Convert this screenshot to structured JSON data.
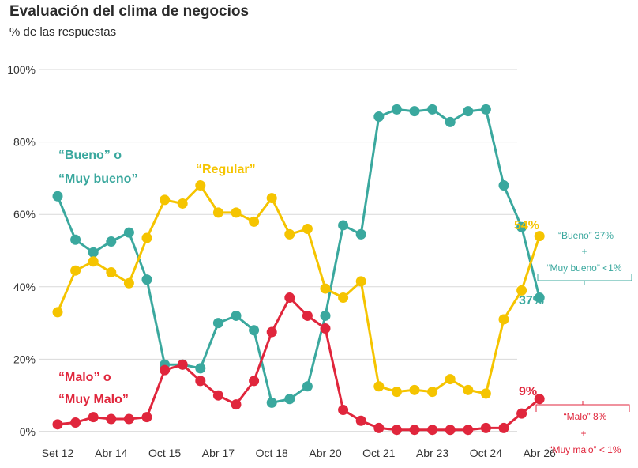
{
  "chart_data": {
    "type": "line",
    "title": "Evaluación del clima de negocios",
    "subtitle": "% de las respuestas",
    "xlabel": "",
    "ylabel": "",
    "ylim": [
      0,
      100
    ],
    "yticks": [
      "0%",
      "20%",
      "40%",
      "60%",
      "80%",
      "100%"
    ],
    "xticks": [
      "Set 12",
      "Abr 14",
      "Oct 15",
      "Abr 17",
      "Oct 18",
      "Abr 20",
      "Oct 21",
      "Abr 23",
      "Oct 24",
      "Abr 26"
    ],
    "grid": true,
    "colors": {
      "bueno": "#3aa89e",
      "regular": "#f5c400",
      "malo": "#e0263c"
    },
    "series": [
      {
        "name": "“Bueno” o “Muy bueno”",
        "key": "bueno",
        "values": [
          65,
          53,
          49.5,
          52.5,
          55,
          42,
          18.5,
          18.5,
          17.5,
          30,
          32,
          28,
          8,
          9,
          12.5,
          32,
          57,
          54.5,
          87,
          89,
          88.5,
          89,
          85.5,
          88.5,
          89,
          68,
          56.5,
          37
        ]
      },
      {
        "name": "“Regular”",
        "key": "regular",
        "values": [
          33,
          44.5,
          47,
          44,
          41,
          53.5,
          64,
          63,
          68,
          60.5,
          60.5,
          58,
          64.5,
          54.5,
          56,
          39.5,
          37,
          41.5,
          12.5,
          11,
          11.5,
          11,
          14.5,
          11.5,
          10.5,
          31,
          39,
          54
        ]
      },
      {
        "name": "“Malo” o “Muy Malo”",
        "key": "malo",
        "values": [
          2,
          2.5,
          4,
          3.5,
          3.5,
          4,
          17,
          18.5,
          14,
          10,
          7.5,
          14,
          27.5,
          37,
          32,
          28.5,
          6,
          3,
          1,
          0.5,
          0.5,
          0.5,
          0.5,
          0.5,
          1,
          1,
          5,
          9
        ]
      }
    ],
    "labels": {
      "bueno_line1": "“Bueno” o",
      "bueno_line2": "“Muy bueno”",
      "regular": "“Regular”",
      "malo_line1": "“Malo” o",
      "malo_line2": "“Muy Malo”"
    },
    "end_labels": {
      "regular": "54%",
      "bueno": "37%",
      "malo": "9%"
    },
    "notes": {
      "bueno_line1": "“Bueno” 37%",
      "bueno_plus": "+",
      "bueno_line2": "“Muy bueno” <1%",
      "malo_line1": "“Malo” 8%",
      "malo_plus": "+",
      "malo_line2": "“Muy malo” < 1%"
    }
  }
}
